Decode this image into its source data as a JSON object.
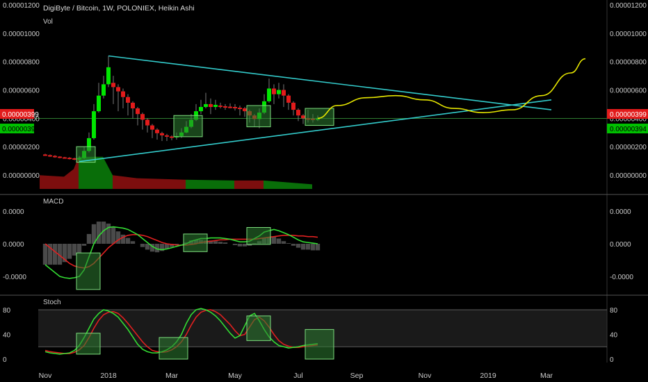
{
  "header": {
    "title": "DigiByte / Bitcoin, 1W, POLONIEX, Heikin Ashi",
    "volume_label": "Vol"
  },
  "colors": {
    "background": "#000000",
    "bull": "#00e600",
    "bear": "#e21b1b",
    "trendline": "#33cccc",
    "projection": "#e6e600",
    "macd_line": "#33dd33",
    "signal_line": "#e02020",
    "stoch_k": "#33dd33",
    "stoch_d": "#e02020",
    "highlight_fill": "#2e7d32",
    "highlight_border": "#7ddc7d"
  },
  "price_badges": [
    {
      "value": "0.00000399",
      "color": "#e21b1b"
    },
    {
      "value": "0.00000394",
      "color": "#00c000"
    }
  ],
  "chart_data": [
    {
      "type": "candlestick",
      "title": "DigiByte / Bitcoin, 1W, POLONIEX, Heikin Ashi",
      "y_tick_labels": [
        "0.00001200",
        "0.00001000",
        "0.00000800",
        "0.00000600",
        "0.00000400",
        "0.00000200",
        "0.00000000"
      ],
      "y_ticks": [
        1200,
        1000,
        800,
        600,
        400,
        200,
        0
      ],
      "y_unit_scale": "1e-8",
      "x_tick_labels": [
        "Nov",
        "2018",
        "Mar",
        "May",
        "Jul",
        "Sep",
        "Nov",
        "2019",
        "Mar"
      ],
      "x_ticks": [
        0,
        13,
        26,
        39,
        52,
        64,
        78,
        91,
        103
      ],
      "candles": [
        {
          "i": 0,
          "o": 145,
          "c": 140,
          "h": 150,
          "l": 135
        },
        {
          "i": 1,
          "o": 140,
          "c": 135,
          "h": 145,
          "l": 128
        },
        {
          "i": 2,
          "o": 135,
          "c": 130,
          "h": 140,
          "l": 122
        },
        {
          "i": 3,
          "o": 130,
          "c": 125,
          "h": 133,
          "l": 118
        },
        {
          "i": 4,
          "o": 125,
          "c": 122,
          "h": 128,
          "l": 115
        },
        {
          "i": 5,
          "o": 122,
          "c": 118,
          "h": 126,
          "l": 110
        },
        {
          "i": 6,
          "o": 118,
          "c": 115,
          "h": 122,
          "l": 105
        },
        {
          "i": 7,
          "o": 115,
          "c": 120,
          "h": 135,
          "l": 100
        },
        {
          "i": 8,
          "o": 120,
          "c": 170,
          "h": 200,
          "l": 115
        },
        {
          "i": 9,
          "o": 170,
          "c": 260,
          "h": 300,
          "l": 160
        },
        {
          "i": 10,
          "o": 260,
          "c": 450,
          "h": 500,
          "l": 250
        },
        {
          "i": 11,
          "o": 450,
          "c": 560,
          "h": 650,
          "l": 440
        },
        {
          "i": 12,
          "o": 560,
          "c": 640,
          "h": 700,
          "l": 540
        },
        {
          "i": 13,
          "o": 640,
          "c": 760,
          "h": 840,
          "l": 620
        },
        {
          "i": 14,
          "o": 650,
          "c": 620,
          "h": 700,
          "l": 500
        },
        {
          "i": 15,
          "o": 620,
          "c": 590,
          "h": 640,
          "l": 450
        },
        {
          "i": 16,
          "o": 590,
          "c": 550,
          "h": 610,
          "l": 470
        },
        {
          "i": 17,
          "o": 550,
          "c": 510,
          "h": 570,
          "l": 420
        },
        {
          "i": 18,
          "o": 510,
          "c": 470,
          "h": 520,
          "l": 400
        },
        {
          "i": 19,
          "o": 470,
          "c": 430,
          "h": 480,
          "l": 350
        },
        {
          "i": 20,
          "o": 430,
          "c": 390,
          "h": 440,
          "l": 320
        },
        {
          "i": 21,
          "o": 390,
          "c": 350,
          "h": 400,
          "l": 300
        },
        {
          "i": 22,
          "o": 350,
          "c": 320,
          "h": 360,
          "l": 260
        },
        {
          "i": 23,
          "o": 320,
          "c": 295,
          "h": 330,
          "l": 250
        },
        {
          "i": 24,
          "o": 295,
          "c": 280,
          "h": 305,
          "l": 240
        },
        {
          "i": 25,
          "o": 280,
          "c": 272,
          "h": 290,
          "l": 240
        },
        {
          "i": 26,
          "o": 272,
          "c": 268,
          "h": 280,
          "l": 245
        },
        {
          "i": 27,
          "o": 268,
          "c": 275,
          "h": 300,
          "l": 250
        },
        {
          "i": 28,
          "o": 275,
          "c": 300,
          "h": 330,
          "l": 262
        },
        {
          "i": 29,
          "o": 300,
          "c": 340,
          "h": 380,
          "l": 295
        },
        {
          "i": 30,
          "o": 340,
          "c": 390,
          "h": 430,
          "l": 330
        },
        {
          "i": 31,
          "o": 390,
          "c": 450,
          "h": 500,
          "l": 380
        },
        {
          "i": 32,
          "o": 450,
          "c": 480,
          "h": 530,
          "l": 430
        },
        {
          "i": 33,
          "o": 480,
          "c": 500,
          "h": 580,
          "l": 470
        },
        {
          "i": 34,
          "o": 500,
          "c": 480,
          "h": 540,
          "l": 430
        },
        {
          "i": 35,
          "o": 480,
          "c": 495,
          "h": 530,
          "l": 460
        },
        {
          "i": 36,
          "o": 490,
          "c": 485,
          "h": 510,
          "l": 470
        },
        {
          "i": 37,
          "o": 485,
          "c": 482,
          "h": 500,
          "l": 460
        },
        {
          "i": 38,
          "o": 482,
          "c": 480,
          "h": 505,
          "l": 470
        },
        {
          "i": 39,
          "o": 480,
          "c": 475,
          "h": 500,
          "l": 455
        },
        {
          "i": 40,
          "o": 475,
          "c": 470,
          "h": 490,
          "l": 420
        },
        {
          "i": 41,
          "o": 470,
          "c": 450,
          "h": 480,
          "l": 410
        },
        {
          "i": 42,
          "o": 450,
          "c": 420,
          "h": 460,
          "l": 370
        },
        {
          "i": 43,
          "o": 420,
          "c": 395,
          "h": 430,
          "l": 340
        },
        {
          "i": 44,
          "o": 395,
          "c": 440,
          "h": 470,
          "l": 330
        },
        {
          "i": 45,
          "o": 440,
          "c": 520,
          "h": 570,
          "l": 430
        },
        {
          "i": 46,
          "o": 520,
          "c": 610,
          "h": 680,
          "l": 510
        },
        {
          "i": 47,
          "o": 610,
          "c": 570,
          "h": 640,
          "l": 500
        },
        {
          "i": 48,
          "o": 570,
          "c": 600,
          "h": 650,
          "l": 540
        },
        {
          "i": 49,
          "o": 600,
          "c": 560,
          "h": 640,
          "l": 480
        },
        {
          "i": 50,
          "o": 560,
          "c": 510,
          "h": 570,
          "l": 460
        },
        {
          "i": 51,
          "o": 510,
          "c": 460,
          "h": 520,
          "l": 420
        },
        {
          "i": 52,
          "o": 460,
          "c": 420,
          "h": 470,
          "l": 380
        },
        {
          "i": 53,
          "o": 420,
          "c": 400,
          "h": 430,
          "l": 360
        },
        {
          "i": 54,
          "o": 400,
          "c": 398,
          "h": 460,
          "l": 370
        },
        {
          "i": 55,
          "o": 398,
          "c": 396,
          "h": 430,
          "l": 370
        },
        {
          "i": 56,
          "o": 396,
          "c": 399,
          "h": 420,
          "l": 380
        }
      ],
      "volume": [
        {
          "i": 0,
          "v": 180,
          "up": false
        },
        {
          "i": 5,
          "v": 160,
          "up": false
        },
        {
          "i": 7,
          "v": 260,
          "up": false
        },
        {
          "i": 8,
          "v": 420,
          "up": true
        },
        {
          "i": 13,
          "v": 420,
          "up": true
        },
        {
          "i": 15,
          "v": 180,
          "up": false
        },
        {
          "i": 20,
          "v": 140,
          "up": false
        },
        {
          "i": 30,
          "v": 120,
          "up": true
        },
        {
          "i": 40,
          "v": 110,
          "up": false
        },
        {
          "i": 46,
          "v": 110,
          "up": true
        },
        {
          "i": 56,
          "v": 60,
          "up": false
        }
      ]
    },
    {
      "type": "line",
      "title": "MACD",
      "y_tick_labels": [
        "0.0000",
        "0.0000",
        "-0.0000"
      ],
      "y_ticks": [
        50,
        0,
        -50
      ],
      "series": [
        {
          "name": "macd",
          "values": [
            -32,
            -38,
            -44,
            -50,
            -52,
            -53,
            -52,
            -50,
            -40,
            -20,
            0,
            12,
            20,
            25,
            26,
            25,
            24,
            22,
            18,
            14,
            8,
            2,
            -4,
            -8,
            -9,
            -8,
            -6,
            -4,
            -2,
            0,
            4,
            6,
            8,
            8,
            9,
            9,
            9,
            8,
            7,
            5,
            3,
            3,
            4,
            8,
            12,
            18,
            20,
            22,
            20,
            17,
            14,
            10,
            6,
            3,
            2,
            1,
            0
          ]
        },
        {
          "name": "signal",
          "values": [
            0,
            -6,
            -12,
            -18,
            -24,
            -30,
            -34,
            -36,
            -37,
            -35,
            -30,
            -22,
            -14,
            -6,
            0,
            6,
            10,
            13,
            14,
            14,
            13,
            11,
            8,
            5,
            2,
            0,
            -1,
            -2,
            -2,
            -2,
            -1,
            0,
            2,
            3,
            4,
            5,
            6,
            6,
            7,
            7,
            7,
            7,
            7,
            7,
            8,
            9,
            10,
            11,
            12,
            13,
            13,
            13,
            12,
            12,
            11,
            11,
            10
          ]
        },
        {
          "name": "histogram",
          "values": [
            -32,
            -32,
            -32,
            -32,
            -28,
            -23,
            -18,
            -14,
            -3,
            15,
            30,
            34,
            34,
            31,
            26,
            19,
            14,
            9,
            4,
            0,
            -5,
            -9,
            -12,
            -13,
            -11,
            -8,
            -5,
            -2,
            0,
            2,
            5,
            6,
            6,
            5,
            5,
            4,
            3,
            2,
            0,
            -2,
            -4,
            -4,
            -3,
            1,
            4,
            9,
            10,
            11,
            8,
            4,
            1,
            -3,
            -6,
            -9,
            -9,
            -10,
            -10
          ]
        }
      ]
    },
    {
      "type": "line",
      "title": "Stoch",
      "y_tick_labels": [
        "80",
        "40",
        "0"
      ],
      "y_ticks": [
        80,
        40,
        0
      ],
      "series": [
        {
          "name": "k",
          "values": [
            12,
            10,
            9,
            8,
            9,
            10,
            14,
            22,
            35,
            50,
            65,
            74,
            80,
            78,
            74,
            68,
            58,
            48,
            36,
            24,
            16,
            12,
            10,
            10,
            12,
            15,
            20,
            28,
            40,
            58,
            72,
            80,
            82,
            80,
            76,
            70,
            62,
            52,
            42,
            34,
            38,
            54,
            70,
            74,
            62,
            48,
            36,
            28,
            22,
            20,
            18,
            19,
            20,
            22,
            23,
            24,
            25
          ]
        },
        {
          "name": "d",
          "values": [
            14,
            12,
            11,
            10,
            9,
            9,
            11,
            15,
            22,
            35,
            50,
            63,
            72,
            76,
            77,
            74,
            67,
            58,
            48,
            38,
            28,
            20,
            14,
            12,
            11,
            12,
            15,
            20,
            28,
            40,
            55,
            68,
            76,
            79,
            80,
            77,
            72,
            64,
            56,
            46,
            38,
            40,
            52,
            64,
            68,
            62,
            52,
            40,
            30,
            24,
            21,
            19,
            19,
            20,
            21,
            22,
            23
          ]
        }
      ],
      "band": [
        20,
        80
      ]
    }
  ],
  "annotations": {
    "trendline_upper": [
      {
        "i": 13,
        "p": 840
      },
      {
        "i": 104,
        "p": 460
      }
    ],
    "trendline_lower": [
      {
        "i": 7,
        "p": 95
      },
      {
        "i": 104,
        "p": 530
      }
    ],
    "projection": [
      {
        "i": 56,
        "p": 400
      },
      {
        "i": 60,
        "p": 490
      },
      {
        "i": 66,
        "p": 545
      },
      {
        "i": 72,
        "p": 560
      },
      {
        "i": 78,
        "p": 530
      },
      {
        "i": 84,
        "p": 470
      },
      {
        "i": 90,
        "p": 440
      },
      {
        "i": 96,
        "p": 460
      },
      {
        "i": 102,
        "p": 560
      },
      {
        "i": 108,
        "p": 720
      },
      {
        "i": 111,
        "p": 820
      }
    ],
    "highlight_boxes": [
      {
        "pane": 0,
        "i0": 7,
        "i1": 10,
        "v0": 90,
        "v1": 200
      },
      {
        "pane": 0,
        "i0": 27,
        "i1": 32,
        "v0": 270,
        "v1": 420
      },
      {
        "pane": 0,
        "i0": 42,
        "i1": 46,
        "v0": 340,
        "v1": 490
      },
      {
        "pane": 0,
        "i0": 54,
        "i1": 59,
        "v0": 350,
        "v1": 470
      },
      {
        "pane": 1,
        "i0": 7,
        "i1": 11,
        "v0": -70,
        "v1": -14
      },
      {
        "pane": 1,
        "i0": 29,
        "i1": 33,
        "v0": -12,
        "v1": 15
      },
      {
        "pane": 1,
        "i0": 42,
        "i1": 46,
        "v0": -1,
        "v1": 25
      },
      {
        "pane": 2,
        "i0": 7,
        "i1": 11,
        "v0": 8,
        "v1": 42
      },
      {
        "pane": 2,
        "i0": 24,
        "i1": 29,
        "v0": 0,
        "v1": 35
      },
      {
        "pane": 2,
        "i0": 42,
        "i1": 46,
        "v0": 30,
        "v1": 70
      },
      {
        "pane": 2,
        "i0": 54,
        "i1": 59,
        "v0": 0,
        "v1": 48
      }
    ]
  }
}
